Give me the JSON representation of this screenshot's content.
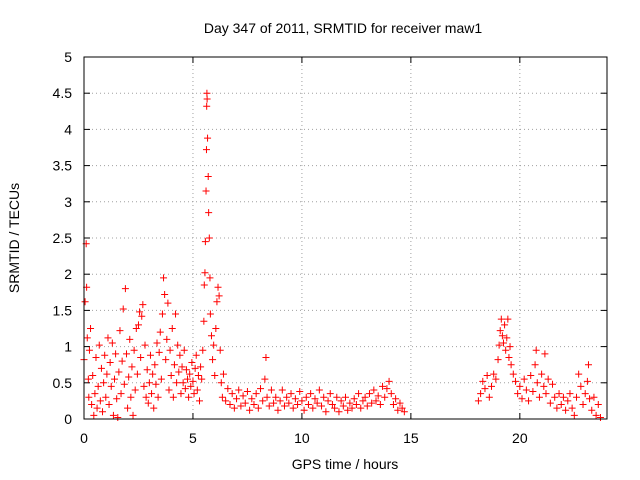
{
  "chart_data": {
    "type": "scatter",
    "title": "Day 347 of 2011, SRMTID for receiver maw1",
    "xlabel": "GPS time / hours",
    "ylabel": "SRMTID / TECUs",
    "xlim": [
      0,
      24
    ],
    "ylim": [
      0,
      5
    ],
    "x_ticks": [
      0,
      5,
      10,
      15,
      20
    ],
    "y_ticks": [
      0,
      0.5,
      1,
      1.5,
      2,
      2.5,
      3,
      3.5,
      4,
      4.5,
      5
    ],
    "x_tick_labels": [
      "0",
      "5",
      "10",
      "15",
      "20"
    ],
    "y_tick_labels": [
      "0",
      "0.5",
      "1",
      "1.5",
      "2",
      "2.5",
      "3",
      "3.5",
      "4",
      "4.5",
      "5"
    ],
    "grid": true,
    "marker": "+",
    "color": "#ff0000",
    "series": [
      {
        "name": "maw1",
        "points": [
          [
            0.0,
            0.82
          ],
          [
            0.05,
            1.62
          ],
          [
            0.1,
            2.42
          ],
          [
            0.12,
            1.82
          ],
          [
            0.15,
            1.12
          ],
          [
            0.2,
            0.55
          ],
          [
            0.22,
            0.3
          ],
          [
            0.25,
            0.95
          ],
          [
            0.3,
            1.25
          ],
          [
            0.35,
            0.2
          ],
          [
            0.4,
            0.6
          ],
          [
            0.45,
            0.05
          ],
          [
            0.5,
            0.35
          ],
          [
            0.55,
            0.85
          ],
          [
            0.6,
            0.15
          ],
          [
            0.65,
            0.45
          ],
          [
            0.7,
            1.02
          ],
          [
            0.75,
            0.25
          ],
          [
            0.8,
            0.7
          ],
          [
            0.85,
            0.1
          ],
          [
            0.9,
            0.5
          ],
          [
            0.95,
            0.88
          ],
          [
            1.0,
            0.3
          ],
          [
            1.05,
            0.62
          ],
          [
            1.1,
            1.12
          ],
          [
            1.15,
            0.2
          ],
          [
            1.2,
            0.78
          ],
          [
            1.25,
            0.45
          ],
          [
            1.3,
            1.05
          ],
          [
            1.35,
            0.05
          ],
          [
            1.4,
            0.55
          ],
          [
            1.45,
            0.9
          ],
          [
            1.5,
            0.28
          ],
          [
            1.55,
            0.02
          ],
          [
            1.6,
            0.65
          ],
          [
            1.65,
            1.22
          ],
          [
            1.7,
            0.35
          ],
          [
            1.75,
            0.8
          ],
          [
            1.8,
            1.52
          ],
          [
            1.85,
            0.48
          ],
          [
            1.9,
            1.8
          ],
          [
            1.95,
            0.9
          ],
          [
            2.0,
            0.15
          ],
          [
            2.05,
            0.58
          ],
          [
            2.1,
            1.1
          ],
          [
            2.15,
            0.3
          ],
          [
            2.2,
            0.72
          ],
          [
            2.25,
            0.05
          ],
          [
            2.3,
            0.95
          ],
          [
            2.35,
            0.4
          ],
          [
            2.4,
            1.25
          ],
          [
            2.45,
            0.62
          ],
          [
            2.5,
            1.3
          ],
          [
            2.55,
            1.48
          ],
          [
            2.6,
            0.85
          ],
          [
            2.65,
            1.42
          ],
          [
            2.7,
            1.58
          ],
          [
            2.75,
            0.45
          ],
          [
            2.8,
            1.02
          ],
          [
            2.85,
            0.3
          ],
          [
            2.9,
            0.68
          ],
          [
            2.95,
            0.22
          ],
          [
            3.0,
            0.5
          ],
          [
            3.05,
            0.88
          ],
          [
            3.1,
            0.35
          ],
          [
            3.15,
            0.62
          ],
          [
            3.2,
            0.15
          ],
          [
            3.25,
            0.75
          ],
          [
            3.3,
            0.48
          ],
          [
            3.35,
            1.05
          ],
          [
            3.4,
            0.3
          ],
          [
            3.45,
            0.92
          ],
          [
            3.5,
            1.2
          ],
          [
            3.55,
            0.55
          ],
          [
            3.6,
            1.45
          ],
          [
            3.65,
            1.95
          ],
          [
            3.7,
            1.72
          ],
          [
            3.75,
            0.82
          ],
          [
            3.8,
            1.1
          ],
          [
            3.85,
            1.6
          ],
          [
            3.9,
            0.4
          ],
          [
            3.95,
            0.95
          ],
          [
            4.0,
            0.6
          ],
          [
            4.05,
            1.25
          ],
          [
            4.1,
            0.3
          ],
          [
            4.15,
            0.75
          ],
          [
            4.2,
            1.45
          ],
          [
            4.25,
            0.5
          ],
          [
            4.3,
            1.02
          ],
          [
            4.35,
            0.65
          ],
          [
            4.4,
            0.88
          ],
          [
            4.45,
            0.35
          ],
          [
            4.5,
            0.72
          ],
          [
            4.55,
            0.5
          ],
          [
            4.6,
            0.95
          ],
          [
            4.65,
            0.42
          ],
          [
            4.7,
            0.68
          ],
          [
            4.75,
            0.55
          ],
          [
            4.8,
            0.3
          ],
          [
            4.85,
            0.62
          ],
          [
            4.9,
            0.45
          ],
          [
            4.95,
            0.78
          ],
          [
            5.0,
            0.52
          ],
          [
            5.05,
            0.35
          ],
          [
            5.1,
            0.7
          ],
          [
            5.15,
            0.88
          ],
          [
            5.2,
            0.4
          ],
          [
            5.25,
            0.6
          ],
          [
            5.3,
            0.25
          ],
          [
            5.35,
            0.72
          ],
          [
            5.4,
            0.55
          ],
          [
            5.45,
            0.95
          ],
          [
            5.5,
            1.35
          ],
          [
            5.52,
            1.85
          ],
          [
            5.55,
            2.02
          ],
          [
            5.57,
            2.45
          ],
          [
            5.6,
            3.15
          ],
          [
            5.62,
            3.72
          ],
          [
            5.63,
            4.32
          ],
          [
            5.64,
            4.5
          ],
          [
            5.65,
            4.42
          ],
          [
            5.67,
            3.88
          ],
          [
            5.7,
            3.35
          ],
          [
            5.72,
            2.85
          ],
          [
            5.75,
            2.5
          ],
          [
            5.78,
            1.95
          ],
          [
            5.8,
            1.45
          ],
          [
            5.85,
            1.15
          ],
          [
            5.9,
            0.82
          ],
          [
            5.95,
            1.02
          ],
          [
            6.0,
            0.6
          ],
          [
            6.05,
            1.25
          ],
          [
            6.1,
            1.62
          ],
          [
            6.15,
            1.82
          ],
          [
            6.2,
            1.7
          ],
          [
            6.25,
            0.95
          ],
          [
            6.3,
            0.5
          ],
          [
            6.35,
            0.3
          ],
          [
            6.4,
            0.62
          ],
          [
            6.5,
            0.25
          ],
          [
            6.6,
            0.42
          ],
          [
            6.7,
            0.2
          ],
          [
            6.8,
            0.35
          ],
          [
            6.9,
            0.15
          ],
          [
            7.0,
            0.28
          ],
          [
            7.1,
            0.4
          ],
          [
            7.2,
            0.18
          ],
          [
            7.3,
            0.32
          ],
          [
            7.4,
            0.22
          ],
          [
            7.5,
            0.38
          ],
          [
            7.6,
            0.12
          ],
          [
            7.7,
            0.28
          ],
          [
            7.8,
            0.2
          ],
          [
            7.9,
            0.35
          ],
          [
            8.0,
            0.15
          ],
          [
            8.1,
            0.42
          ],
          [
            8.2,
            0.25
          ],
          [
            8.3,
            0.55
          ],
          [
            8.35,
            0.85
          ],
          [
            8.4,
            0.3
          ],
          [
            8.5,
            0.18
          ],
          [
            8.6,
            0.4
          ],
          [
            8.7,
            0.22
          ],
          [
            8.8,
            0.3
          ],
          [
            8.9,
            0.12
          ],
          [
            9.0,
            0.25
          ],
          [
            9.1,
            0.4
          ],
          [
            9.2,
            0.18
          ],
          [
            9.3,
            0.3
          ],
          [
            9.4,
            0.22
          ],
          [
            9.5,
            0.35
          ],
          [
            9.6,
            0.15
          ],
          [
            9.7,
            0.28
          ],
          [
            9.8,
            0.2
          ],
          [
            9.9,
            0.38
          ],
          [
            10.0,
            0.25
          ],
          [
            10.1,
            0.12
          ],
          [
            10.2,
            0.3
          ],
          [
            10.3,
            0.2
          ],
          [
            10.4,
            0.35
          ],
          [
            10.5,
            0.15
          ],
          [
            10.6,
            0.28
          ],
          [
            10.7,
            0.22
          ],
          [
            10.8,
            0.4
          ],
          [
            10.9,
            0.18
          ],
          [
            11.0,
            0.3
          ],
          [
            11.1,
            0.1
          ],
          [
            11.2,
            0.25
          ],
          [
            11.3,
            0.35
          ],
          [
            11.4,
            0.2
          ],
          [
            11.5,
            0.15
          ],
          [
            11.6,
            0.3
          ],
          [
            11.7,
            0.1
          ],
          [
            11.8,
            0.25
          ],
          [
            11.9,
            0.18
          ],
          [
            12.0,
            0.3
          ],
          [
            12.1,
            0.12
          ],
          [
            12.2,
            0.22
          ],
          [
            12.3,
            0.15
          ],
          [
            12.4,
            0.28
          ],
          [
            12.5,
            0.2
          ],
          [
            12.6,
            0.35
          ],
          [
            12.7,
            0.15
          ],
          [
            12.8,
            0.25
          ],
          [
            12.9,
            0.3
          ],
          [
            13.0,
            0.18
          ],
          [
            13.1,
            0.35
          ],
          [
            13.2,
            0.22
          ],
          [
            13.3,
            0.4
          ],
          [
            13.4,
            0.25
          ],
          [
            13.5,
            0.32
          ],
          [
            13.6,
            0.2
          ],
          [
            13.7,
            0.45
          ],
          [
            13.8,
            0.3
          ],
          [
            13.9,
            0.42
          ],
          [
            14.0,
            0.52
          ],
          [
            14.1,
            0.35
          ],
          [
            14.2,
            0.2
          ],
          [
            14.3,
            0.28
          ],
          [
            14.4,
            0.12
          ],
          [
            14.5,
            0.22
          ],
          [
            14.6,
            0.15
          ],
          [
            14.7,
            0.1
          ],
          [
            18.1,
            0.25
          ],
          [
            18.2,
            0.35
          ],
          [
            18.3,
            0.52
          ],
          [
            18.4,
            0.42
          ],
          [
            18.5,
            0.6
          ],
          [
            18.6,
            0.3
          ],
          [
            18.7,
            0.45
          ],
          [
            18.8,
            0.62
          ],
          [
            18.9,
            0.55
          ],
          [
            19.0,
            0.82
          ],
          [
            19.05,
            1.02
          ],
          [
            19.1,
            1.22
          ],
          [
            19.15,
            1.38
          ],
          [
            19.2,
            1.15
          ],
          [
            19.25,
            1.05
          ],
          [
            19.3,
            1.3
          ],
          [
            19.35,
            0.95
          ],
          [
            19.4,
            1.12
          ],
          [
            19.45,
            1.38
          ],
          [
            19.5,
            0.85
          ],
          [
            19.55,
            1.0
          ],
          [
            19.6,
            0.75
          ],
          [
            19.7,
            0.62
          ],
          [
            19.8,
            0.52
          ],
          [
            19.9,
            0.35
          ],
          [
            20.0,
            0.45
          ],
          [
            20.1,
            0.28
          ],
          [
            20.2,
            0.55
          ],
          [
            20.3,
            0.4
          ],
          [
            20.4,
            0.25
          ],
          [
            20.5,
            0.6
          ],
          [
            20.6,
            0.38
          ],
          [
            20.7,
            0.75
          ],
          [
            20.75,
            0.95
          ],
          [
            20.8,
            0.5
          ],
          [
            20.9,
            0.3
          ],
          [
            21.0,
            0.62
          ],
          [
            21.1,
            0.45
          ],
          [
            21.15,
            0.9
          ],
          [
            21.2,
            0.35
          ],
          [
            21.3,
            0.55
          ],
          [
            21.4,
            0.22
          ],
          [
            21.5,
            0.48
          ],
          [
            21.6,
            0.3
          ],
          [
            21.7,
            0.15
          ],
          [
            21.8,
            0.35
          ],
          [
            21.9,
            0.2
          ],
          [
            22.0,
            0.3
          ],
          [
            22.1,
            0.12
          ],
          [
            22.2,
            0.25
          ],
          [
            22.3,
            0.35
          ],
          [
            22.4,
            0.15
          ],
          [
            22.5,
            0.05
          ],
          [
            22.6,
            0.3
          ],
          [
            22.7,
            0.62
          ],
          [
            22.8,
            0.45
          ],
          [
            22.9,
            0.2
          ],
          [
            23.0,
            0.35
          ],
          [
            23.1,
            0.52
          ],
          [
            23.15,
            0.75
          ],
          [
            23.2,
            0.28
          ],
          [
            23.3,
            0.12
          ],
          [
            23.4,
            0.3
          ],
          [
            23.5,
            0.05
          ],
          [
            23.6,
            0.2
          ],
          [
            23.7,
            0.02
          ]
        ]
      }
    ]
  }
}
